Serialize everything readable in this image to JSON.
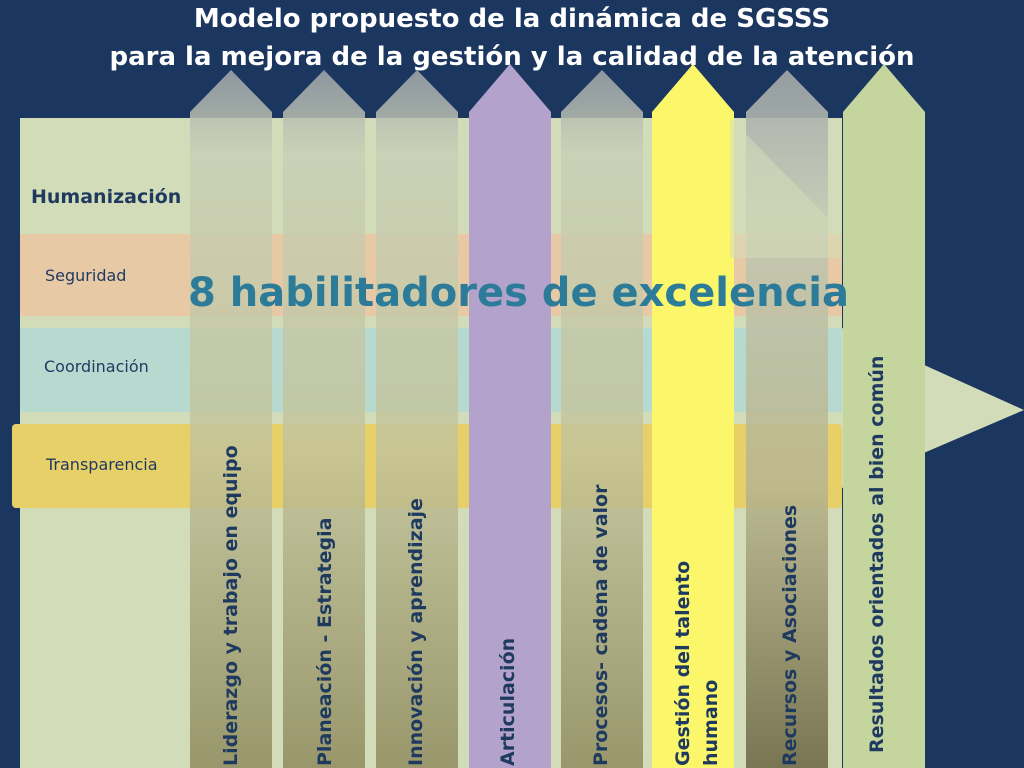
{
  "title_line1": "Modelo propuesto de la dinámica de SGSSS",
  "title_line2": "para la mejora de la gestión y la calidad de la atención",
  "main_heading": "8  habilitadores de excelencia",
  "dimensions": {
    "humanizacion": "Humanización",
    "seguridad": "Seguridad",
    "coordinacion": "Coordinación",
    "transparencia": "Transparencia"
  },
  "enablers": [
    {
      "label": "Liderazgo y trabajo en equipo",
      "color": "#9aa0a6"
    },
    {
      "label": "Planeación - Estrategia",
      "color": "#9aa0a6"
    },
    {
      "label": "Innovación y aprendizaje",
      "color": "#9aa0a6"
    },
    {
      "label": "Articulación",
      "color": "#b2a2cc"
    },
    {
      "label": "Procesos- cadena de valor",
      "color": "#9aa0a6"
    },
    {
      "label": "Gestión del talento",
      "label2": "humano",
      "color": "#fbf66a"
    },
    {
      "label": "Recursos y Asociaciones",
      "color": "#9aa0a6"
    },
    {
      "label": "Resultados orientados  al bien común",
      "color": "#c5d59e"
    }
  ],
  "colors": {
    "background": "#1b365f",
    "panel": "#d3dcb8",
    "seguridad_band": "#e8c9a6",
    "coordinacion_band": "#b6dad0",
    "transparencia_band": "#e8d068",
    "heading": "#2c7b98"
  }
}
